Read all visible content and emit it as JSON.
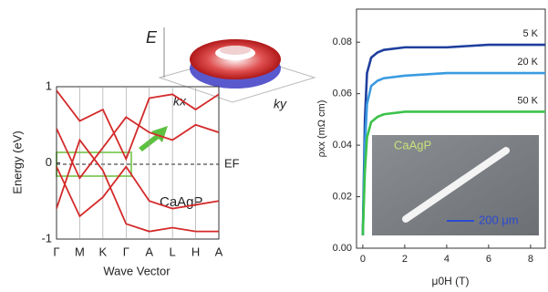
{
  "chart_data": [
    {
      "type": "line",
      "ylabel": "Energy (eV)",
      "xlabel": "Wave Vector",
      "categories": [
        "Γ",
        "M",
        "K",
        "Γ",
        "A",
        "L",
        "H",
        "A"
      ],
      "ylim": [
        -1,
        1
      ],
      "yticks": [
        -1,
        0,
        1
      ],
      "series": [
        {
          "color": "#d42a2a",
          "values": [
            0.95,
            0.55,
            0.7,
            0.05,
            0.85,
            0.9,
            0.7,
            0.9
          ]
        },
        {
          "color": "#d42a2a",
          "values": [
            0.45,
            -0.2,
            0.2,
            0.6,
            0.4,
            0.3,
            0.5,
            0.4
          ]
        },
        {
          "color": "#d42a2a",
          "values": [
            -0.05,
            -0.7,
            -0.45,
            -0.05,
            -0.5,
            -0.6,
            -0.55,
            -0.5
          ]
        },
        {
          "color": "#d42a2a",
          "values": [
            -0.6,
            0.3,
            -0.1,
            -0.8,
            -0.9,
            -0.85,
            -0.9,
            -0.9
          ]
        }
      ],
      "fermi_label": "EF",
      "material": "CaAgP",
      "inset_labels": {
        "energy": "E",
        "kx": "kx",
        "ky": "ky"
      }
    },
    {
      "type": "line",
      "xlabel": "μ0H (T)",
      "ylabel": "ρxx (mΩ cm)",
      "x": [
        0,
        0.1,
        0.2,
        0.4,
        0.7,
        1,
        2,
        4,
        6,
        8,
        8.7
      ],
      "xlim": [
        -0.3,
        8.7
      ],
      "xticks": [
        0,
        2,
        4,
        6,
        8
      ],
      "ylim": [
        0,
        0.09
      ],
      "yticks": [
        {
          "value": 0,
          "label": "0.00"
        },
        0.02,
        0.04,
        0.06,
        0.08
      ],
      "series": [
        {
          "name": "5 K",
          "color": "#1f3f9e",
          "values": [
            0.005,
            0.05,
            0.068,
            0.074,
            0.076,
            0.077,
            0.078,
            0.078,
            0.079,
            0.079,
            0.079
          ]
        },
        {
          "name": "20 K",
          "color": "#3a9be0",
          "values": [
            0.005,
            0.04,
            0.056,
            0.063,
            0.065,
            0.066,
            0.067,
            0.068,
            0.068,
            0.068,
            0.068
          ]
        },
        {
          "name": "50 K",
          "color": "#3cc24a",
          "values": [
            0.005,
            0.03,
            0.043,
            0.049,
            0.051,
            0.052,
            0.053,
            0.053,
            0.053,
            0.053,
            0.053
          ]
        }
      ],
      "inset_labels": {
        "material": "CaAgP",
        "scale": "200 μm"
      }
    }
  ]
}
